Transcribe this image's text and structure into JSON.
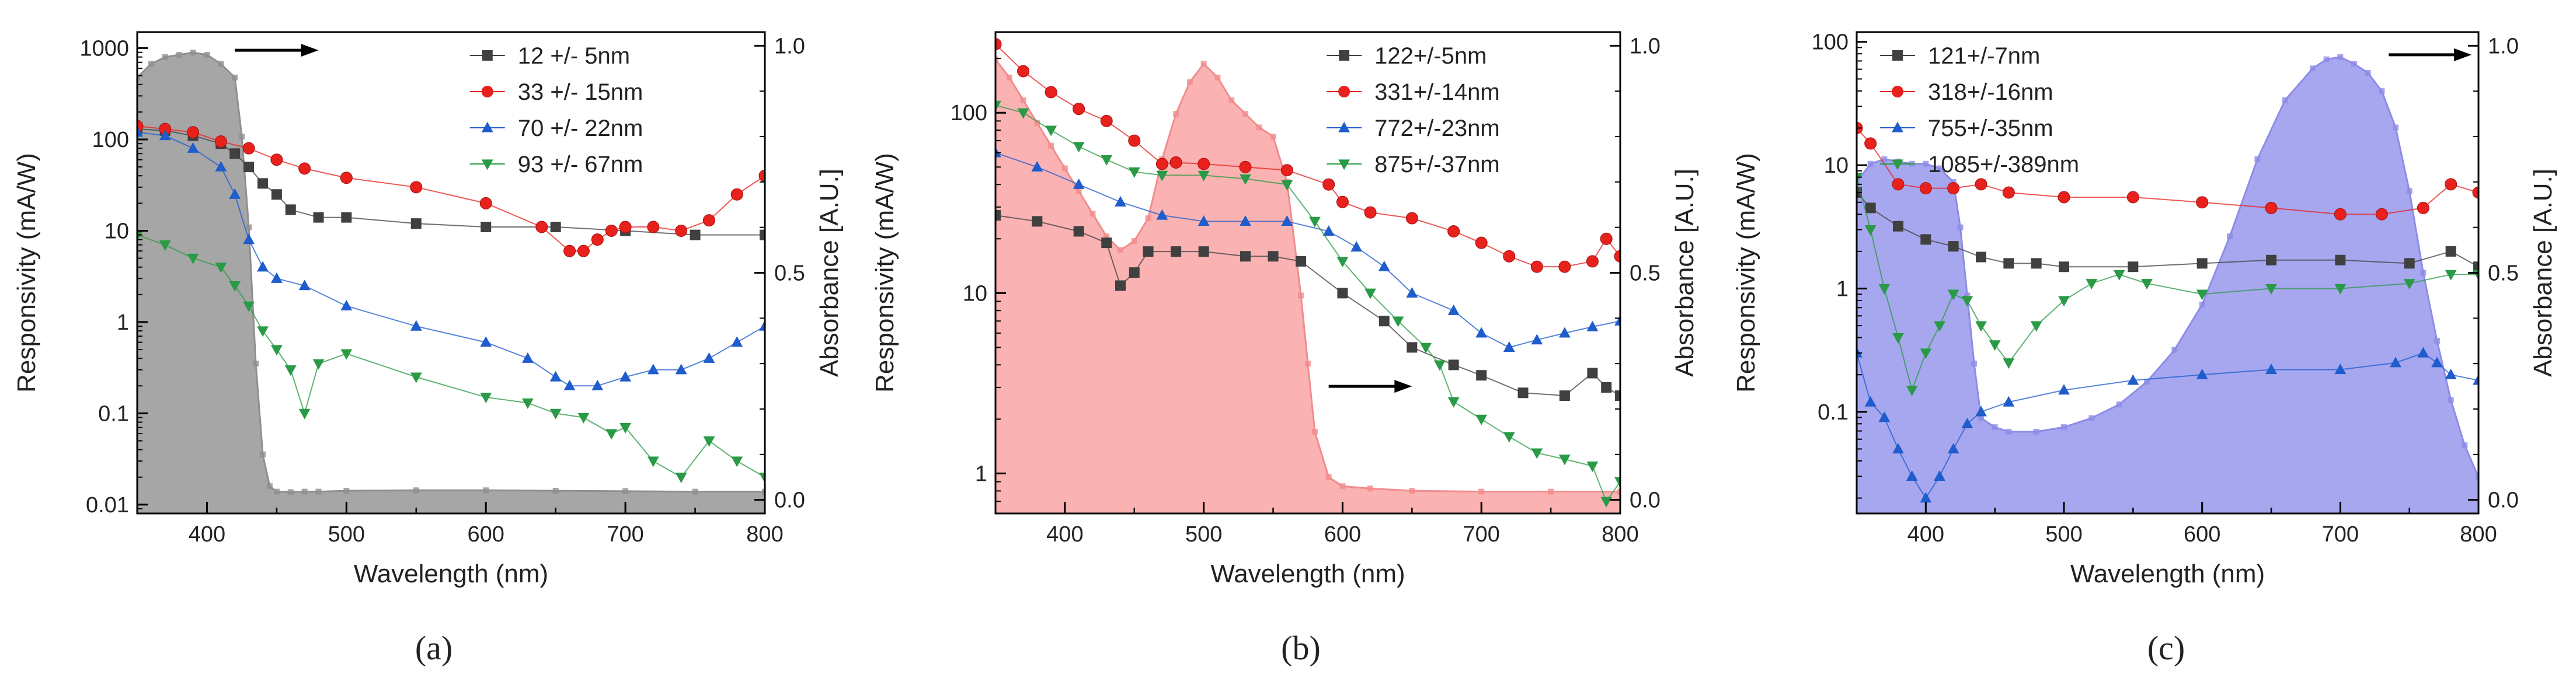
{
  "figure": {
    "panels": [
      {
        "caption": "(a)"
      },
      {
        "caption": "(b)"
      },
      {
        "caption": "(c)"
      }
    ]
  },
  "chart_data": [
    {
      "type": "line",
      "title": "",
      "caption": "(a)",
      "xlabel": "Wavelength (nm)",
      "ylabel": "Responsivity (mA/W)",
      "y2label": "Absorbance [A.U.]",
      "xlim": [
        350,
        800
      ],
      "ylim": [
        0.008,
        1500
      ],
      "yscale": "log",
      "y2lim": [
        -0.03,
        1.03
      ],
      "xticks": [
        400,
        500,
        600,
        700,
        800
      ],
      "xtick_labels": [
        "400",
        "500",
        "600",
        "700",
        "800"
      ],
      "yticks": [
        0.01,
        0.1,
        1,
        10,
        100,
        1000
      ],
      "ytick_labels": [
        "0.01",
        "0.1",
        "1",
        "10",
        "100",
        "1000"
      ],
      "y2ticks": [
        0.0,
        0.5,
        1.0
      ],
      "y2tick_labels": [
        "0.0",
        "0.5",
        "1.0"
      ],
      "legend_position": "top-right",
      "arrow": {
        "x1": 420,
        "x2": 480,
        "y": 0.99,
        "axis": "y2"
      },
      "absorbance": {
        "fill": "#a6a6a6",
        "edge": "#8f8f8f",
        "x": [
          350,
          360,
          370,
          380,
          390,
          400,
          410,
          420,
          425,
          430,
          435,
          440,
          445,
          450,
          460,
          470,
          480,
          500,
          550,
          600,
          650,
          700,
          750,
          800
        ],
        "y": [
          0.93,
          0.96,
          0.975,
          0.98,
          0.985,
          0.98,
          0.96,
          0.93,
          0.8,
          0.6,
          0.3,
          0.1,
          0.03,
          0.018,
          0.017,
          0.018,
          0.018,
          0.02,
          0.021,
          0.021,
          0.02,
          0.019,
          0.018,
          0.018
        ]
      },
      "series": [
        {
          "name": "12 +/- 5nm",
          "color": "#404040",
          "marker": "square",
          "x": [
            350,
            370,
            390,
            410,
            420,
            430,
            440,
            450,
            460,
            480,
            500,
            550,
            600,
            650,
            700,
            750,
            800
          ],
          "y": [
            130,
            125,
            110,
            90,
            70,
            50,
            33,
            25,
            17,
            14,
            14,
            12,
            11,
            11,
            10,
            9,
            9
          ]
        },
        {
          "name": "33 +/- 15nm",
          "color": "#e8211d",
          "marker": "circle",
          "x": [
            350,
            370,
            390,
            410,
            430,
            450,
            470,
            500,
            550,
            600,
            640,
            660,
            670,
            680,
            690,
            700,
            720,
            740,
            760,
            780,
            800
          ],
          "y": [
            140,
            130,
            120,
            95,
            80,
            60,
            48,
            38,
            30,
            20,
            11,
            6,
            6,
            8,
            10,
            11,
            11,
            10,
            13,
            25,
            40
          ]
        },
        {
          "name": "70 +/- 22nm",
          "color": "#1f5ccc",
          "marker": "triangle-up",
          "x": [
            350,
            370,
            390,
            410,
            420,
            430,
            440,
            450,
            470,
            500,
            550,
            600,
            630,
            650,
            660,
            680,
            700,
            720,
            740,
            760,
            780,
            800
          ],
          "y": [
            120,
            110,
            80,
            50,
            25,
            8,
            4,
            3,
            2.5,
            1.5,
            0.9,
            0.6,
            0.4,
            0.25,
            0.2,
            0.2,
            0.25,
            0.3,
            0.3,
            0.4,
            0.6,
            0.9
          ]
        },
        {
          "name": "93 +/- 67nm",
          "color": "#2a9a46",
          "marker": "triangle-down",
          "x": [
            350,
            370,
            390,
            410,
            420,
            430,
            440,
            450,
            460,
            470,
            480,
            500,
            550,
            600,
            630,
            650,
            670,
            690,
            700,
            720,
            740,
            760,
            780,
            800
          ],
          "y": [
            9,
            7,
            5,
            4,
            2.5,
            1.5,
            0.8,
            0.5,
            0.3,
            0.1,
            0.35,
            0.45,
            0.25,
            0.15,
            0.13,
            0.1,
            0.09,
            0.06,
            0.07,
            0.03,
            0.02,
            0.05,
            0.03,
            0.02
          ]
        }
      ]
    },
    {
      "type": "line",
      "title": "",
      "caption": "(b)",
      "xlabel": "Wavelength (nm)",
      "ylabel": "Responsivity (mA/W)",
      "y2label": "Absorbance [A.U.]",
      "xlim": [
        350,
        800
      ],
      "ylim": [
        0.6,
        280
      ],
      "yscale": "log",
      "y2lim": [
        -0.03,
        1.03
      ],
      "xticks": [
        400,
        500,
        600,
        700,
        800
      ],
      "xtick_labels": [
        "400",
        "500",
        "600",
        "700",
        "800"
      ],
      "yticks": [
        1,
        10,
        100
      ],
      "ytick_labels": [
        "1",
        "10",
        "100"
      ],
      "y2ticks": [
        0.0,
        0.5,
        1.0
      ],
      "y2tick_labels": [
        "0.0",
        "0.5",
        "1.0"
      ],
      "legend_position": "top-right",
      "arrow": {
        "x1": 590,
        "x2": 650,
        "y": 0.25,
        "axis": "y2"
      },
      "absorbance": {
        "fill": "#fbb2b2",
        "edge": "#f18c8c",
        "x": [
          350,
          360,
          370,
          380,
          390,
          400,
          410,
          420,
          430,
          440,
          450,
          460,
          470,
          480,
          490,
          500,
          510,
          520,
          530,
          540,
          550,
          560,
          570,
          575,
          580,
          590,
          600,
          620,
          650,
          700,
          750,
          800
        ],
        "y": [
          0.97,
          0.93,
          0.88,
          0.83,
          0.78,
          0.73,
          0.68,
          0.63,
          0.58,
          0.55,
          0.57,
          0.62,
          0.75,
          0.85,
          0.92,
          0.96,
          0.93,
          0.88,
          0.85,
          0.82,
          0.8,
          0.7,
          0.45,
          0.3,
          0.15,
          0.05,
          0.03,
          0.025,
          0.02,
          0.018,
          0.018,
          0.018
        ]
      },
      "series": [
        {
          "name": "122+/-5nm",
          "color": "#404040",
          "marker": "square",
          "x": [
            350,
            380,
            410,
            430,
            440,
            450,
            460,
            480,
            500,
            530,
            550,
            570,
            600,
            630,
            650,
            680,
            700,
            730,
            760,
            780,
            790,
            800
          ],
          "y": [
            27,
            25,
            22,
            19,
            11,
            13,
            17,
            17,
            17,
            16,
            16,
            15,
            10,
            7,
            5,
            4,
            3.5,
            2.8,
            2.7,
            3.6,
            3,
            2.7
          ]
        },
        {
          "name": "331+/-14nm",
          "color": "#e8211d",
          "marker": "circle",
          "x": [
            350,
            370,
            390,
            410,
            430,
            450,
            470,
            480,
            500,
            530,
            560,
            590,
            600,
            620,
            650,
            680,
            700,
            720,
            740,
            760,
            780,
            790,
            800
          ],
          "y": [
            240,
            170,
            130,
            105,
            90,
            70,
            52,
            53,
            52,
            50,
            48,
            40,
            32,
            28,
            26,
            22,
            19,
            16,
            14,
            14,
            15,
            20,
            16
          ]
        },
        {
          "name": "772+/-23nm",
          "color": "#1f5ccc",
          "marker": "triangle-up",
          "x": [
            350,
            380,
            410,
            440,
            470,
            500,
            530,
            560,
            590,
            610,
            630,
            650,
            680,
            700,
            720,
            740,
            760,
            780,
            800
          ],
          "y": [
            60,
            50,
            40,
            32,
            27,
            25,
            25,
            25,
            22,
            18,
            14,
            10,
            8,
            6,
            5,
            5.5,
            6,
            6.5,
            7
          ]
        },
        {
          "name": "875+/-37nm",
          "color": "#2a9a46",
          "marker": "triangle-down",
          "x": [
            350,
            370,
            390,
            410,
            430,
            450,
            470,
            500,
            530,
            560,
            580,
            600,
            620,
            640,
            660,
            670,
            680,
            700,
            720,
            740,
            760,
            780,
            790,
            800
          ],
          "y": [
            110,
            100,
            80,
            65,
            55,
            47,
            45,
            45,
            43,
            40,
            25,
            15,
            10,
            7,
            5,
            4,
            2.5,
            2,
            1.6,
            1.3,
            1.2,
            1.1,
            0.7,
            0.9
          ]
        }
      ]
    },
    {
      "type": "line",
      "title": "",
      "caption": "(c)",
      "xlabel": "Wavelength (nm)",
      "ylabel": "Responsivity (mA/W)",
      "y2label": "Absorbance [A.U.]",
      "xlim": [
        350,
        800
      ],
      "ylim": [
        0.015,
        120
      ],
      "yscale": "log",
      "y2lim": [
        -0.03,
        1.03
      ],
      "xticks": [
        400,
        500,
        600,
        700,
        800
      ],
      "xtick_labels": [
        "400",
        "500",
        "600",
        "700",
        "800"
      ],
      "yticks": [
        0.1,
        1,
        10,
        100
      ],
      "ytick_labels": [
        "0.1",
        "1",
        "10",
        "100"
      ],
      "y2ticks": [
        0.0,
        0.5,
        1.0
      ],
      "y2tick_labels": [
        "0.0",
        "0.5",
        "1.0"
      ],
      "legend_position": "top-left",
      "arrow": {
        "x1": 735,
        "x2": 795,
        "y": 0.98,
        "axis": "y2"
      },
      "absorbance": {
        "fill": "#a7a7f0",
        "edge": "#8c8ce6",
        "x": [
          350,
          360,
          370,
          380,
          390,
          400,
          410,
          420,
          425,
          430,
          435,
          440,
          450,
          460,
          480,
          500,
          520,
          540,
          560,
          580,
          600,
          620,
          640,
          660,
          680,
          690,
          700,
          710,
          720,
          730,
          740,
          750,
          760,
          770,
          780,
          790,
          800
        ],
        "y": [
          0.7,
          0.74,
          0.75,
          0.745,
          0.74,
          0.74,
          0.73,
          0.7,
          0.6,
          0.45,
          0.3,
          0.18,
          0.16,
          0.15,
          0.15,
          0.16,
          0.18,
          0.21,
          0.26,
          0.33,
          0.43,
          0.58,
          0.75,
          0.88,
          0.95,
          0.97,
          0.975,
          0.96,
          0.94,
          0.9,
          0.82,
          0.68,
          0.5,
          0.35,
          0.22,
          0.12,
          0.05
        ]
      },
      "series": [
        {
          "name": "121+/-7nm",
          "color": "#404040",
          "marker": "square",
          "x": [
            350,
            360,
            380,
            400,
            420,
            440,
            460,
            480,
            500,
            550,
            600,
            650,
            700,
            750,
            780,
            800
          ],
          "y": [
            6,
            4.5,
            3.2,
            2.5,
            2.2,
            1.8,
            1.6,
            1.6,
            1.5,
            1.5,
            1.6,
            1.7,
            1.7,
            1.6,
            2,
            1.5
          ]
        },
        {
          "name": "318+/-16nm",
          "color": "#e8211d",
          "marker": "circle",
          "x": [
            350,
            360,
            380,
            400,
            420,
            440,
            460,
            500,
            550,
            600,
            650,
            700,
            730,
            760,
            780,
            800
          ],
          "y": [
            20,
            15,
            7,
            6.5,
            6.5,
            7,
            6,
            5.5,
            5.5,
            5,
            4.5,
            4,
            4,
            4.5,
            7,
            6
          ]
        },
        {
          "name": "755+/-35nm",
          "color": "#1f5ccc",
          "marker": "triangle-up",
          "x": [
            350,
            360,
            370,
            380,
            390,
            400,
            410,
            420,
            430,
            440,
            460,
            500,
            550,
            600,
            650,
            700,
            740,
            760,
            770,
            780,
            800
          ],
          "y": [
            0.3,
            0.12,
            0.09,
            0.05,
            0.03,
            0.02,
            0.03,
            0.05,
            0.08,
            0.1,
            0.12,
            0.15,
            0.18,
            0.2,
            0.22,
            0.22,
            0.25,
            0.3,
            0.25,
            0.2,
            0.18
          ]
        },
        {
          "name": "1085+/-389nm",
          "color": "#2a9a46",
          "marker": "triangle-down",
          "x": [
            350,
            360,
            370,
            380,
            390,
            400,
            410,
            420,
            430,
            440,
            450,
            460,
            480,
            500,
            520,
            540,
            560,
            600,
            650,
            700,
            750,
            780,
            800
          ],
          "y": [
            8,
            3,
            1,
            0.4,
            0.15,
            0.3,
            0.5,
            0.9,
            0.8,
            0.5,
            0.35,
            0.25,
            0.5,
            0.8,
            1.1,
            1.3,
            1.1,
            0.9,
            1,
            1,
            1.1,
            1.3,
            1.3
          ]
        }
      ]
    }
  ]
}
